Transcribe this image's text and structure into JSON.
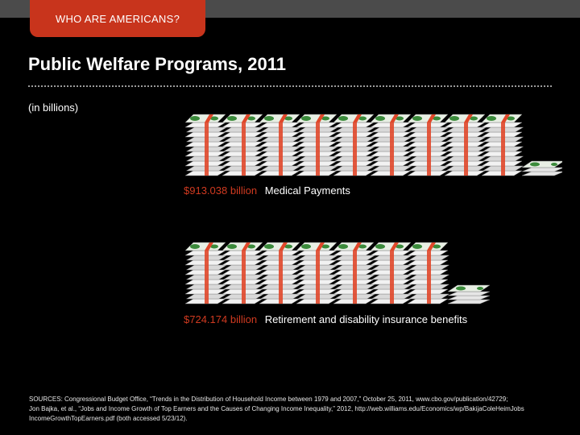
{
  "header": {
    "section_tab": "WHO ARE AMERICANS?"
  },
  "slide": {
    "title": "Public Welfare Programs, 2011",
    "units_note": "(in billions)"
  },
  "programs": [
    {
      "amount": "$913.038 billion",
      "label": "Medical Payments",
      "full_stacks": 9,
      "partial_fraction": 0.13
    },
    {
      "amount": "$724.174 billion",
      "label": "Retirement and disability insurance benefits",
      "full_stacks": 7,
      "partial_fraction": 0.24
    }
  ],
  "colors": {
    "accent": "#c8341c",
    "bill_green": "#3a8a3a",
    "strap_red": "#e0472a"
  },
  "sources": {
    "line1": "SOURCES: Congressional Budget Office, “Trends in the Distribution of Household Income between 1979 and 2007,” October 25, 2011, www.cbo.gov/publication/42729;",
    "line2": "Jon Bajka, et al., “Jobs and Income Growth of Top Earners and the Causes of Changing Income Inequality,” 2012, http://web.williams.edu/Economics/wp/BakijaColeHeimJobs",
    "line3": "IncomeGrowthTopEarners.pdf (both accessed 5/23/12)."
  }
}
